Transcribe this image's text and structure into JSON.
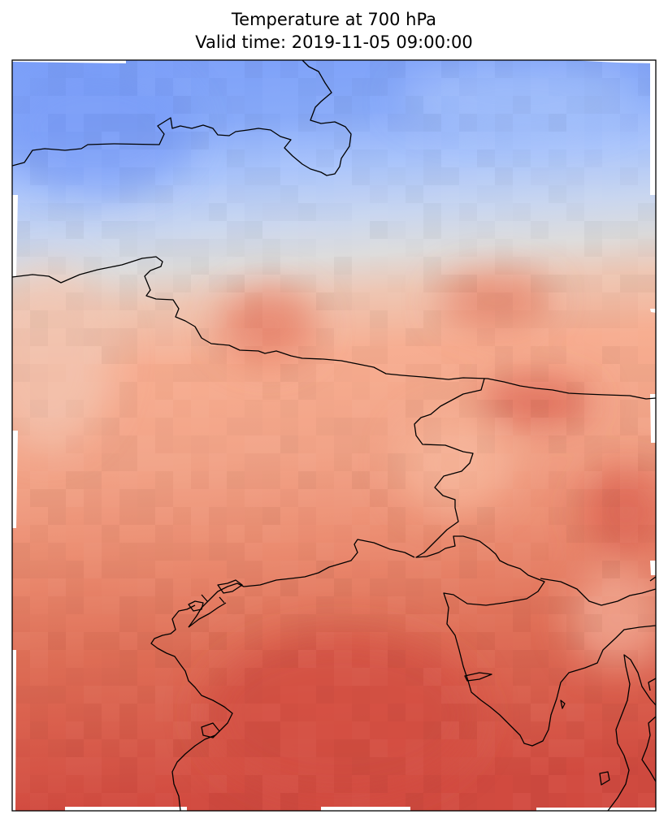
{
  "figure": {
    "title": "Temperature at 700 hPa",
    "subtitle": "Valid time: 2019-11-05 09:00:00"
  },
  "map": {
    "variable": "Temperature",
    "pressure_level": "700 hPa",
    "colormap": "coolwarm",
    "cold_color": "#7b9ff9",
    "neutral_color": "#dddcdc",
    "warm_color": "#f7ad90",
    "hot_color": "#d24b40",
    "coastline_color": "#000000",
    "regions": [
      {
        "name": "cold-band-north",
        "level": 0.2
      },
      {
        "name": "transition-band",
        "level": 0.5
      },
      {
        "name": "warm-band-center",
        "level": 0.75
      },
      {
        "name": "hot-band-south",
        "level": 0.9
      }
    ]
  }
}
